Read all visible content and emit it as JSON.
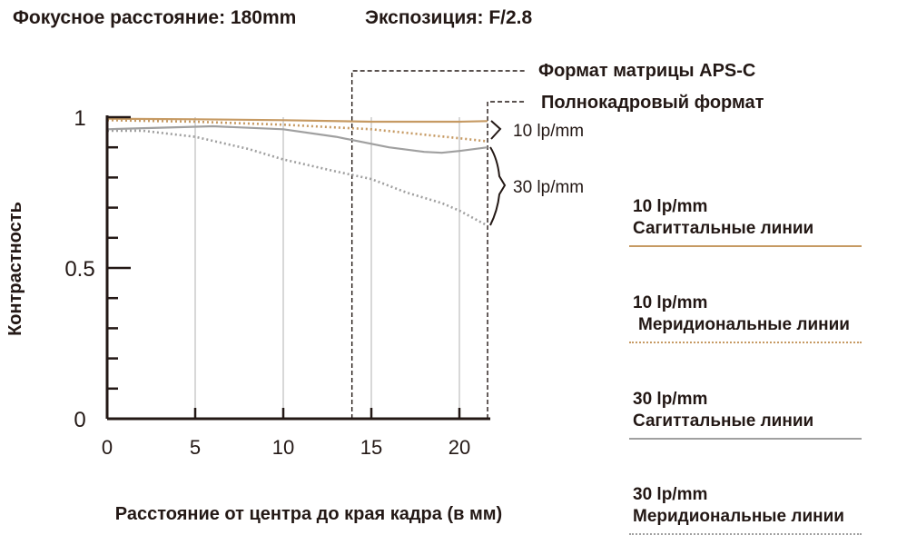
{
  "header": {
    "focal": "Фокусное расстояние: 180mm",
    "exposure": "Экспозиция: F/2.8"
  },
  "frame_labels": {
    "aps_c": "Формат матрицы APS-C",
    "full_frame": "Полнокадровый формат"
  },
  "group_labels": {
    "ten": "10 lp/mm",
    "thirty": "30 lp/mm"
  },
  "legend": [
    {
      "line1": "10 lp/mm",
      "line2": "Сагиттальные линии",
      "color": "#c69a63",
      "style": "solid"
    },
    {
      "line1": "10 lp/mm",
      "line2": "Меридиональные линии",
      "color": "#c69a63",
      "style": "dotted"
    },
    {
      "line1": "30 lp/mm",
      "line2": "Сагиттальные линии",
      "color": "#a0a0a0",
      "style": "solid"
    },
    {
      "line1": "30 lp/mm",
      "line2": "Меридиональные линии",
      "color": "#a0a0a0",
      "style": "dotted"
    }
  ],
  "chart_data": {
    "type": "line",
    "xlabel": "Расстояние от центра до края кадра (в мм)",
    "ylabel": "Контрастность",
    "xlim": [
      0,
      21.6
    ],
    "ylim": [
      0,
      1
    ],
    "x_ticks": [
      0,
      5,
      10,
      15,
      20
    ],
    "y_tick_labels": [
      "0",
      "0.5",
      "1"
    ],
    "y_tick_values": [
      0,
      0.5,
      1
    ],
    "grid": true,
    "aps_c_limit": 13.9,
    "full_frame_limit": 21.6,
    "series": [
      {
        "name": "10 lp/mm Сагиттальные линии",
        "color": "#c69a63",
        "style": "solid",
        "x": [
          0,
          5,
          10,
          15,
          20,
          21.6
        ],
        "y": [
          0.995,
          0.993,
          0.99,
          0.985,
          0.985,
          0.987
        ]
      },
      {
        "name": "10 lp/mm Меридиональные линии",
        "color": "#c69a63",
        "style": "dotted",
        "x": [
          0,
          5,
          10,
          15,
          20,
          21.6
        ],
        "y": [
          0.99,
          0.985,
          0.975,
          0.96,
          0.93,
          0.92
        ]
      },
      {
        "name": "30 lp/mm Сагиттальные линии",
        "color": "#a0a0a0",
        "style": "solid",
        "x": [
          0,
          3,
          6,
          10,
          13,
          16,
          18,
          19,
          20,
          21.6
        ],
        "y": [
          0.96,
          0.965,
          0.97,
          0.96,
          0.935,
          0.9,
          0.885,
          0.882,
          0.888,
          0.9
        ]
      },
      {
        "name": "30 lp/mm Меридиональные линии",
        "color": "#a0a0a0",
        "style": "dotted",
        "x": [
          0,
          2,
          5,
          8,
          10,
          13,
          15,
          17,
          19,
          20,
          21.6
        ],
        "y": [
          0.955,
          0.955,
          0.935,
          0.895,
          0.86,
          0.82,
          0.795,
          0.75,
          0.715,
          0.69,
          0.64
        ]
      }
    ]
  }
}
